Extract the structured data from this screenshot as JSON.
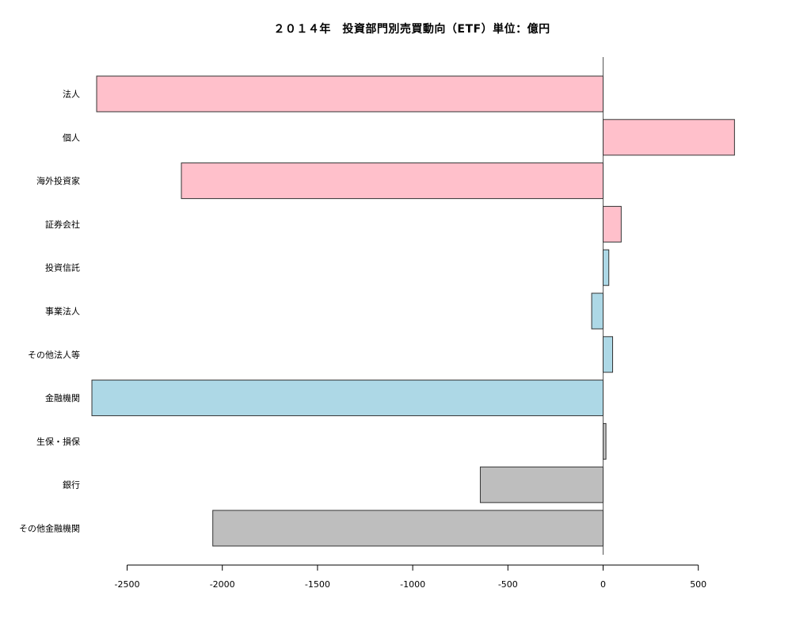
{
  "chart_data": {
    "type": "bar",
    "orientation": "horizontal",
    "title": "２０１４年　投資部門別売買動向（ETF）単位：億円",
    "xlabel": "",
    "ylabel": "",
    "categories": [
      "法人",
      "個人",
      "海外投資家",
      "証券会社",
      "投資信託",
      "事業法人",
      "その他法人等",
      "金融機関",
      "生保・損保",
      "銀行",
      "その他金融機関"
    ],
    "values": [
      -2660,
      690,
      -2215,
      95,
      30,
      -60,
      50,
      -2685,
      15,
      -645,
      -2050
    ],
    "bar_colors": [
      "#FFC0CB",
      "#FFC0CB",
      "#FFC0CB",
      "#FFC0CB",
      "#ADD8E6",
      "#ADD8E6",
      "#ADD8E6",
      "#ADD8E6",
      "#BEBEBE",
      "#BEBEBE",
      "#BEBEBE"
    ],
    "xticks": [
      -2500,
      -2000,
      -1500,
      -1000,
      -500,
      0,
      500
    ],
    "xtick_labels": [
      "-2500",
      "-2000",
      "-1500",
      "-1000",
      "-500",
      "0",
      "500"
    ],
    "xlim": [
      -2500,
      500
    ],
    "grid": false,
    "legend": "none"
  }
}
